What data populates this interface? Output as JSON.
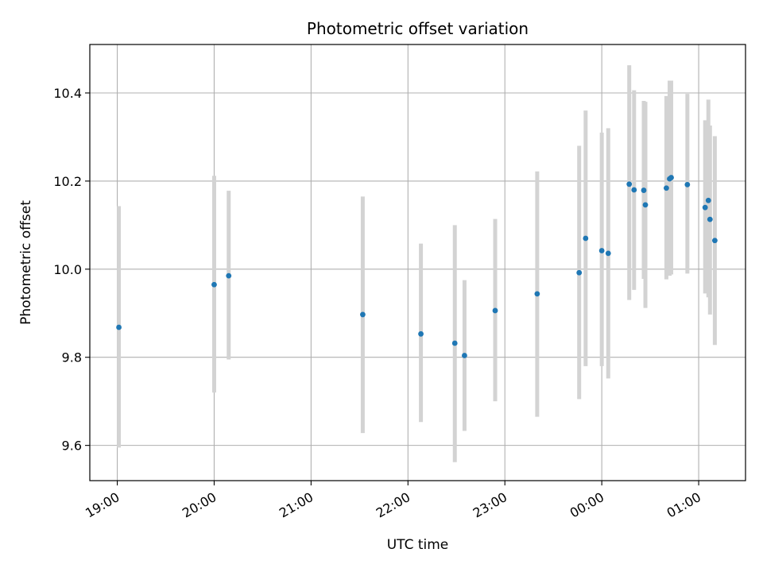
{
  "chart_data": {
    "type": "scatter",
    "title": "Photometric offset variation",
    "xlabel": "UTC time",
    "ylabel": "Photometric offset",
    "xlim": [
      "18:43",
      "01:29"
    ],
    "ylim": [
      9.52,
      10.51
    ],
    "x_ticks": [
      "19:00",
      "20:00",
      "21:00",
      "22:00",
      "23:00",
      "00:00",
      "01:00"
    ],
    "y_ticks": [
      9.6,
      9.8,
      10.0,
      10.2,
      10.4
    ],
    "grid": true,
    "colors": {
      "point": "#1f77b4",
      "errorbar": "#d3d3d3",
      "grid": "#b0b0b0"
    },
    "series": [
      {
        "x": [
          "19:01",
          "20:00",
          "20:09",
          "21:32",
          "22:08",
          "22:29",
          "22:35",
          "22:54",
          "23:20",
          "23:46",
          "23:50",
          "00:00",
          "00:04",
          "00:17",
          "00:20",
          "00:26",
          "00:27",
          "00:40",
          "00:42",
          "00:43",
          "00:53",
          "01:04",
          "01:06",
          "01:07",
          "01:10"
        ],
        "y": [
          9.868,
          9.965,
          9.985,
          9.897,
          9.853,
          9.832,
          9.804,
          9.906,
          9.944,
          9.992,
          10.07,
          10.042,
          10.036,
          10.193,
          10.18,
          10.179,
          10.146,
          10.184,
          10.205,
          10.208,
          10.192,
          10.14,
          10.156,
          10.113,
          10.065
        ],
        "yerr_low": [
          9.595,
          9.72,
          9.795,
          9.628,
          9.653,
          9.562,
          9.633,
          9.7,
          9.665,
          9.705,
          9.78,
          9.78,
          9.752,
          9.93,
          9.953,
          9.978,
          9.912,
          9.977,
          9.985,
          9.988,
          9.99,
          9.945,
          9.936,
          9.897,
          9.828
        ],
        "yerr_high": [
          10.143,
          10.212,
          10.178,
          10.165,
          10.058,
          10.1,
          9.975,
          10.114,
          10.222,
          10.28,
          10.36,
          10.31,
          10.32,
          10.463,
          10.406,
          10.382,
          10.38,
          10.393,
          10.428,
          10.428,
          10.398,
          10.338,
          10.385,
          10.326,
          10.302
        ]
      }
    ]
  }
}
